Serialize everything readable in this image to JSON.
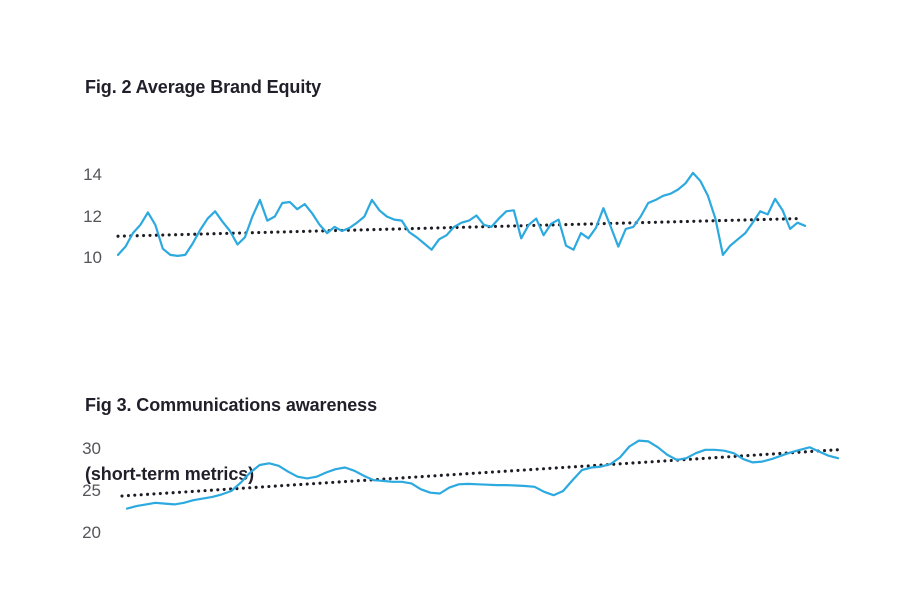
{
  "page_title": "Brand metrics figures",
  "colors": {
    "background": "#ffffff",
    "title_text": "#211f29",
    "tick_text": "#54555a",
    "series_blue": "#2ca9df",
    "trend_black": "#1c1c23"
  },
  "chart_data": [
    {
      "id": "fig2",
      "type": "line",
      "title": "Fig. 2 Average Brand Equity",
      "xlabel": "",
      "ylabel": "",
      "legend": "none",
      "grid": false,
      "yticks": [
        14,
        12,
        10
      ],
      "ylim": [
        10,
        14
      ],
      "series": [
        {
          "name": "average-brand-equity",
          "color": "#2ca9df",
          "values": [
            10.15,
            10.55,
            11.2,
            11.6,
            12.2,
            11.6,
            10.45,
            10.15,
            10.1,
            10.15,
            10.7,
            11.35,
            11.9,
            12.25,
            11.75,
            11.3,
            10.65,
            11.0,
            12.0,
            12.8,
            11.8,
            12.0,
            12.65,
            12.7,
            12.35,
            12.6,
            12.15,
            11.6,
            11.2,
            11.5,
            11.3,
            11.45,
            11.7,
            12.0,
            12.8,
            12.3,
            12.0,
            11.85,
            11.8,
            11.25,
            11.0,
            10.7,
            10.4,
            10.9,
            11.1,
            11.5,
            11.7,
            11.8,
            12.05,
            11.6,
            11.5,
            11.9,
            12.25,
            12.3,
            10.95,
            11.6,
            11.9,
            11.1,
            11.65,
            11.85,
            10.6,
            10.4,
            11.2,
            10.95,
            11.45,
            12.4,
            11.5,
            10.55,
            11.4,
            11.5,
            12.0,
            12.65,
            12.8,
            13.0,
            13.1,
            13.3,
            13.6,
            14.1,
            13.7,
            13.0,
            11.9,
            10.15,
            10.6,
            10.9,
            11.2,
            11.7,
            12.25,
            12.1,
            12.85,
            12.3,
            11.4,
            11.7,
            11.55
          ]
        }
      ],
      "trend": {
        "name": "linear-trend",
        "style": "dotted",
        "color": "#1c1c23",
        "start_value": 11.05,
        "end_value": 11.9
      }
    },
    {
      "id": "fig3",
      "type": "line",
      "title": "Fig 3. Communications awareness",
      "subtitle": "(short-term metrics)",
      "xlabel": "",
      "ylabel": "",
      "legend": "none",
      "grid": false,
      "yticks": [
        30,
        25,
        20
      ],
      "ylim": [
        20,
        30
      ],
      "series": [
        {
          "name": "communications-awareness",
          "color": "#2ca9df",
          "values": [
            22.9,
            23.2,
            23.4,
            23.6,
            23.5,
            23.4,
            23.6,
            23.9,
            24.1,
            24.3,
            24.6,
            25.0,
            26.0,
            27.2,
            28.1,
            28.3,
            28.0,
            27.3,
            26.7,
            26.5,
            26.7,
            27.2,
            27.6,
            27.8,
            27.4,
            26.8,
            26.3,
            26.2,
            26.1,
            26.1,
            25.9,
            25.2,
            24.8,
            24.7,
            25.4,
            25.8,
            25.85,
            25.8,
            25.75,
            25.7,
            25.7,
            25.65,
            25.6,
            25.5,
            24.9,
            24.5,
            25.0,
            26.3,
            27.5,
            27.8,
            27.9,
            28.2,
            29.0,
            30.3,
            31.0,
            30.9,
            30.2,
            29.3,
            28.7,
            28.9,
            29.5,
            29.9,
            29.9,
            29.8,
            29.5,
            28.8,
            28.4,
            28.5,
            28.8,
            29.2,
            29.6,
            29.9,
            30.2,
            29.7,
            29.2,
            28.9
          ]
        }
      ],
      "trend": {
        "name": "linear-trend",
        "style": "dotted",
        "color": "#1c1c23",
        "start_value": 24.4,
        "end_value": 29.95
      }
    }
  ]
}
